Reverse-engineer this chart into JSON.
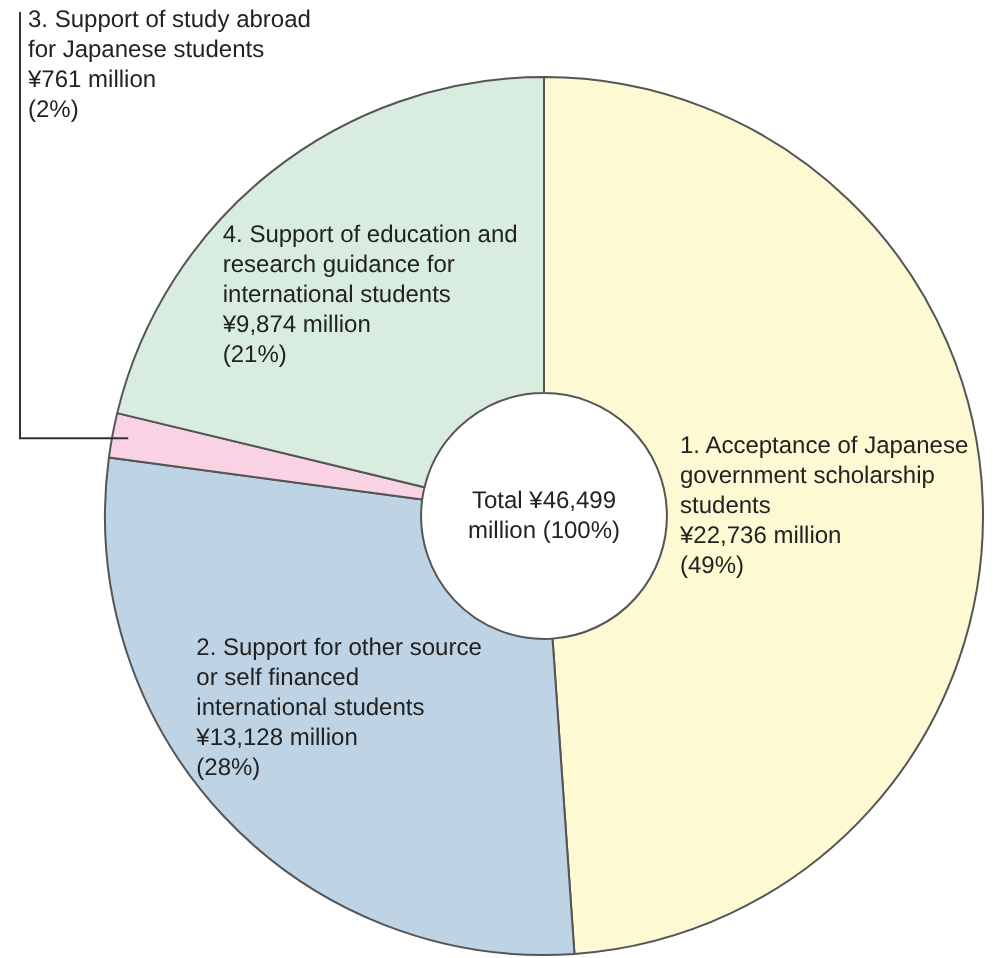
{
  "chart_data": {
    "type": "donut",
    "categories": [
      "1. Acceptance of Japanese government scholarship students",
      "2. Support for other source or self financed international students",
      "3. Support of study abroad for Japanese students",
      "4. Support of education and research guidance for international students"
    ],
    "values": [
      22736,
      13128,
      761,
      9874
    ],
    "value_labels": [
      "¥22,736 million",
      "¥13,128 million",
      "¥761 million",
      "¥9,874 million"
    ],
    "colors": [
      "#fdf9d2",
      "#bed3e3",
      "#f9d3e4",
      "#d8ece0"
    ],
    "annotations": [
      "Total ¥46,499 million (100%)",
      {
        "text": "(49%)",
        "x": "1. Acceptance of Japanese government scholarship students"
      },
      {
        "text": "(28%)",
        "x": "2. Support for other source or self financed international students"
      },
      {
        "text": "(2%)",
        "x": "3. Support of study abroad for Japanese students"
      },
      {
        "text": "(21%)",
        "x": "4. Support of education and research guidance for international students"
      }
    ],
    "legend": false
  }
}
